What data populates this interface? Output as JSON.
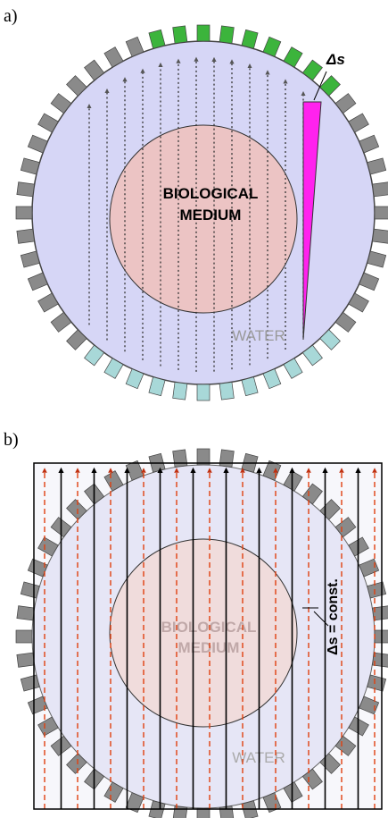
{
  "labels": {
    "a": "a)",
    "b": "b)"
  },
  "panel_a": {
    "delta_s": "Δs",
    "medium": [
      "BIOLOGICAL",
      "MEDIUM"
    ],
    "water": "WATER"
  },
  "panel_b": {
    "medium": [
      "BIOLOGICAL",
      "MEDIUM"
    ],
    "water": "WATER",
    "delta_s_const": "Δs = const."
  }
}
